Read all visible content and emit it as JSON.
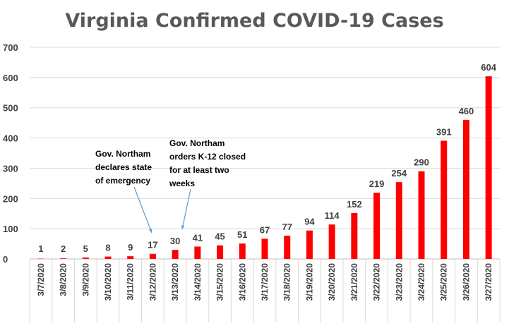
{
  "chart_data": {
    "type": "bar",
    "title": "Virginia Confirmed COVID-19 Cases",
    "xlabel": "",
    "ylabel": "",
    "ylim": [
      0,
      700
    ],
    "yticks": [
      0,
      100,
      200,
      300,
      400,
      500,
      600,
      700
    ],
    "grid": true,
    "legend": "none",
    "bar_color": "#ff0000",
    "categories": [
      "3/7/2020",
      "3/8/2020",
      "3/9/2020",
      "3/10/2020",
      "3/11/2020",
      "3/12/2020",
      "3/13/2020",
      "3/14/2020",
      "3/15/2020",
      "3/16/2020",
      "3/17/2020",
      "3/18/2020",
      "3/19/2020",
      "3/20/2020",
      "3/21/2020",
      "3/22/2020",
      "3/23/2020",
      "3/24/2020",
      "3/25/2020",
      "3/26/2020",
      "3/27/2020"
    ],
    "values": [
      1,
      2,
      5,
      8,
      9,
      17,
      30,
      41,
      45,
      51,
      67,
      77,
      94,
      114,
      152,
      219,
      254,
      290,
      391,
      460,
      604
    ],
    "annotations": [
      {
        "lines": [
          "Gov. Northam",
          "declares state",
          "of emergency"
        ],
        "category": "3/12/2020"
      },
      {
        "lines": [
          "Gov. Northam",
          "orders K-12 closed",
          "for at least two",
          "weeks"
        ],
        "category": "3/13/2020"
      }
    ]
  }
}
